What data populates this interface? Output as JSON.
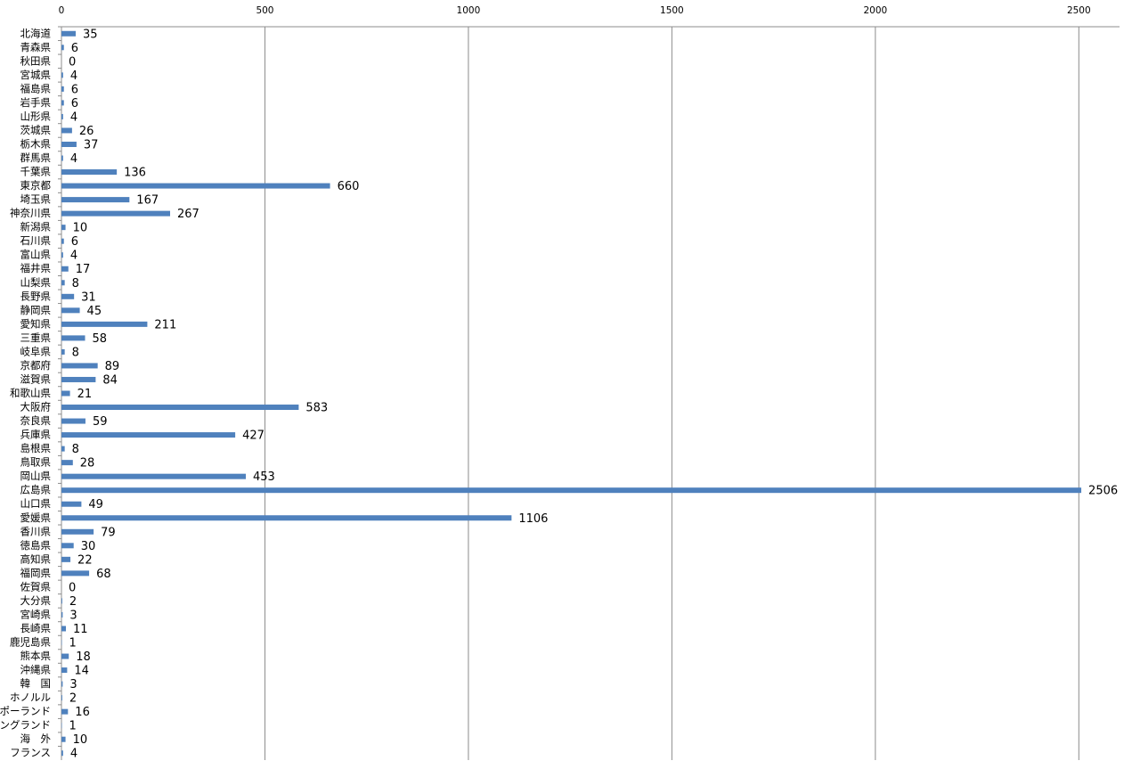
{
  "chart_data": {
    "type": "bar",
    "orientation": "horizontal",
    "categories": [
      "北海道",
      "青森県",
      "秋田県",
      "宮城県",
      "福島県",
      "岩手県",
      "山形県",
      "茨城県",
      "栃木県",
      "群馬県",
      "千葉県",
      "東京都",
      "埼玉県",
      "神奈川県",
      "新潟県",
      "石川県",
      "富山県",
      "福井県",
      "山梨県",
      "長野県",
      "静岡県",
      "愛知県",
      "三重県",
      "岐阜県",
      "京都府",
      "滋賀県",
      "和歌山県",
      "大阪府",
      "奈良県",
      "兵庫県",
      "島根県",
      "鳥取県",
      "岡山県",
      "広島県",
      "山口県",
      "愛媛県",
      "香川県",
      "徳島県",
      "高知県",
      "福岡県",
      "佐賀県",
      "大分県",
      "宮崎県",
      "長崎県",
      "鹿児島県",
      "熊本県",
      "沖縄県",
      "韓　国",
      "ホノルル",
      "ポーランド",
      "イングランド",
      "海　外",
      "フランス"
    ],
    "values": [
      35,
      6,
      0,
      4,
      6,
      6,
      4,
      26,
      37,
      4,
      136,
      660,
      167,
      267,
      10,
      6,
      4,
      17,
      8,
      31,
      45,
      211,
      58,
      8,
      89,
      84,
      21,
      583,
      59,
      427,
      8,
      28,
      453,
      2506,
      49,
      1106,
      79,
      30,
      22,
      68,
      0,
      2,
      3,
      11,
      1,
      18,
      14,
      3,
      2,
      16,
      1,
      10,
      4
    ],
    "color": "#4f81bd",
    "xlim": [
      0,
      2600
    ],
    "xticks": [
      0,
      500,
      1000,
      1500,
      2000,
      2500
    ],
    "grid": true
  }
}
